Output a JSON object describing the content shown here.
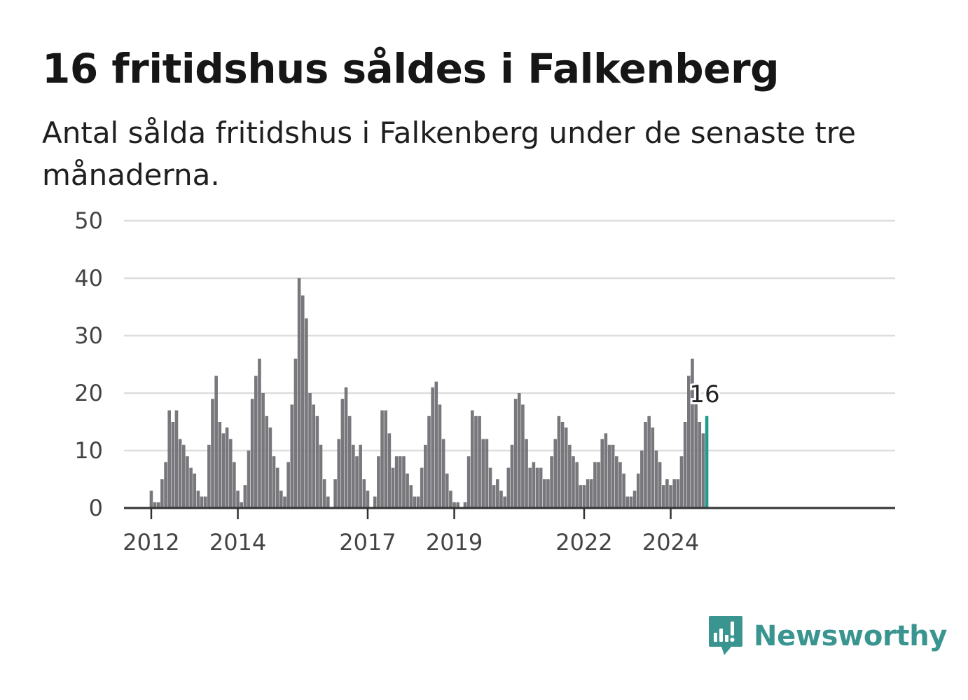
{
  "title": "16 fritidshus såldes i Falkenberg",
  "subtitle": "Antal sålda fritidshus i Falkenberg under de senaste tre månaderna.",
  "brand": {
    "name": "Newsworthy",
    "icon": "newsworthy-logo-icon"
  },
  "colors": {
    "bar": "#77777c",
    "highlight": "#1f9c8c",
    "grid": "#dddddd",
    "axis": "#333333",
    "brand": "#3a9590"
  },
  "chart_data": {
    "type": "bar",
    "title": "16 fritidshus såldes i Falkenberg",
    "subtitle": "Antal sålda fritidshus i Falkenberg under de senaste tre månaderna.",
    "xlabel": "",
    "ylabel": "",
    "ylim": [
      0,
      50
    ],
    "yticks": [
      0,
      10,
      20,
      30,
      40,
      50
    ],
    "xticks": [
      {
        "label": "2012",
        "index": 3
      },
      {
        "label": "2014",
        "index": 27
      },
      {
        "label": "2017",
        "index": 63
      },
      {
        "label": "2019",
        "index": 87
      },
      {
        "label": "2022",
        "index": 123
      },
      {
        "label": "2024",
        "index": 147
      }
    ],
    "grid": true,
    "highlight_last": true,
    "last_label": "16",
    "values": [
      0,
      0,
      0,
      3,
      1,
      1,
      5,
      8,
      17,
      15,
      17,
      12,
      11,
      9,
      7,
      6,
      3,
      2,
      2,
      11,
      19,
      23,
      15,
      13,
      14,
      12,
      8,
      3,
      1,
      4,
      10,
      19,
      23,
      26,
      20,
      16,
      14,
      9,
      7,
      3,
      2,
      8,
      18,
      26,
      40,
      37,
      33,
      20,
      18,
      16,
      11,
      5,
      2,
      0,
      5,
      12,
      19,
      21,
      16,
      11,
      9,
      11,
      5,
      3,
      0,
      2,
      9,
      17,
      17,
      13,
      7,
      9,
      9,
      9,
      6,
      4,
      2,
      2,
      7,
      11,
      16,
      21,
      22,
      18,
      12,
      6,
      3,
      1,
      1,
      0,
      1,
      9,
      17,
      16,
      16,
      12,
      12,
      7,
      4,
      5,
      3,
      2,
      7,
      11,
      19,
      20,
      18,
      12,
      7,
      8,
      7,
      7,
      5,
      5,
      9,
      12,
      16,
      15,
      14,
      11,
      9,
      8,
      4,
      4,
      5,
      5,
      8,
      8,
      12,
      13,
      11,
      11,
      9,
      8,
      6,
      2,
      2,
      3,
      6,
      10,
      15,
      16,
      14,
      10,
      8,
      4,
      5,
      4,
      5,
      5,
      9,
      15,
      23,
      26,
      19,
      15,
      13,
      16
    ]
  }
}
